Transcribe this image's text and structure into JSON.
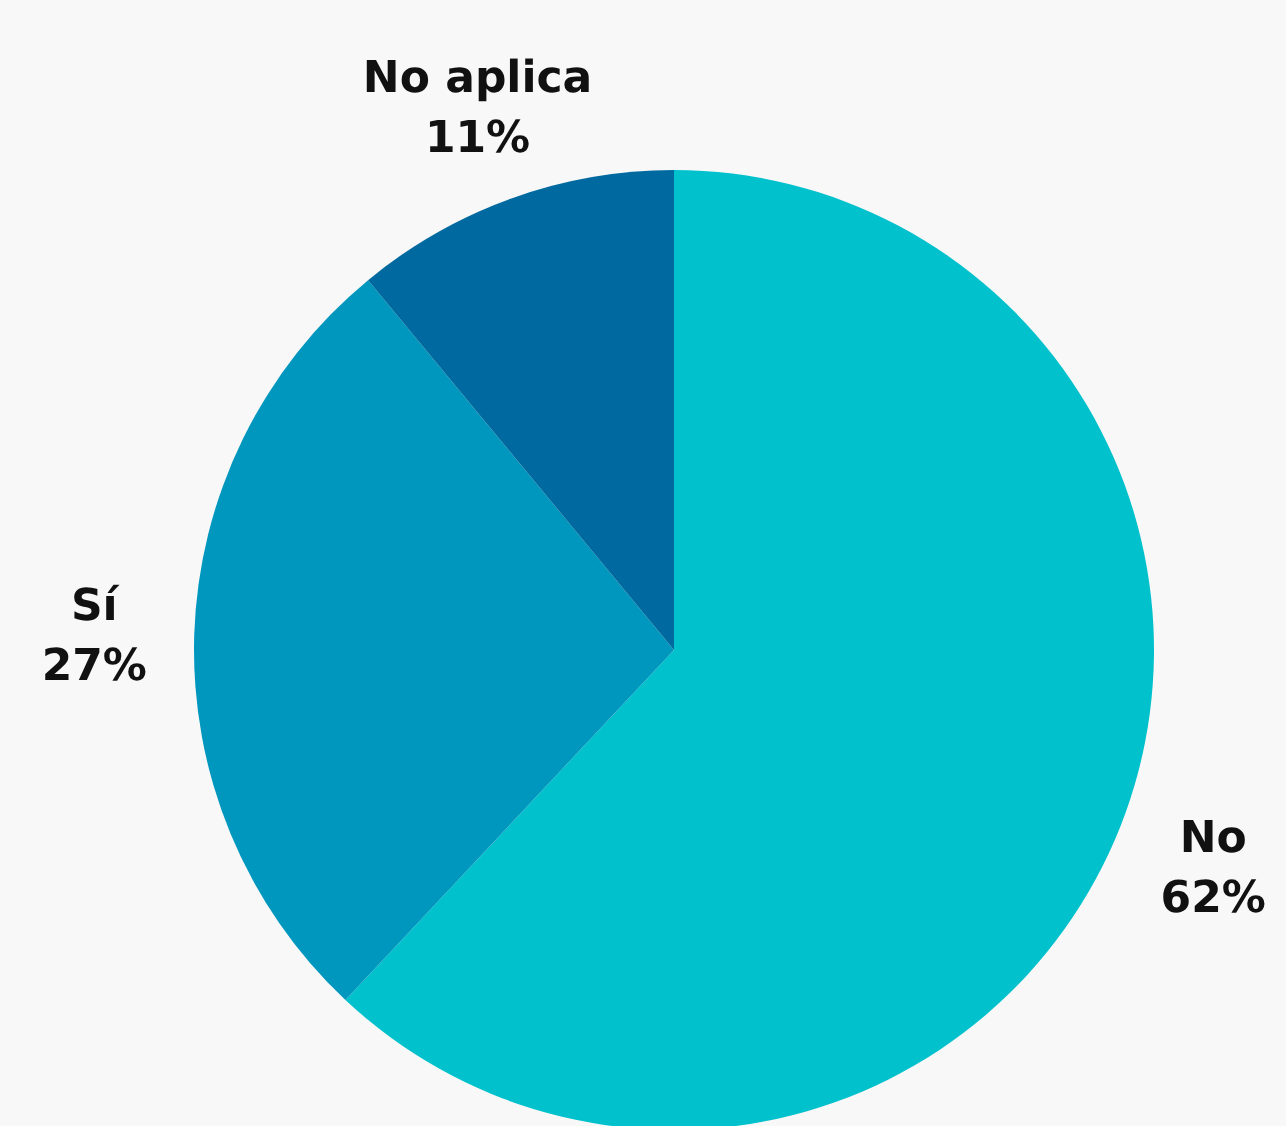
{
  "chart_data": {
    "type": "pie",
    "categories": [
      "No",
      "Sí",
      "No aplica"
    ],
    "values": [
      62,
      27,
      11
    ],
    "colors": [
      "#00c1cc",
      "#0097be",
      "#00699f"
    ],
    "value_labels": [
      "62%",
      "27%",
      "11%"
    ]
  }
}
